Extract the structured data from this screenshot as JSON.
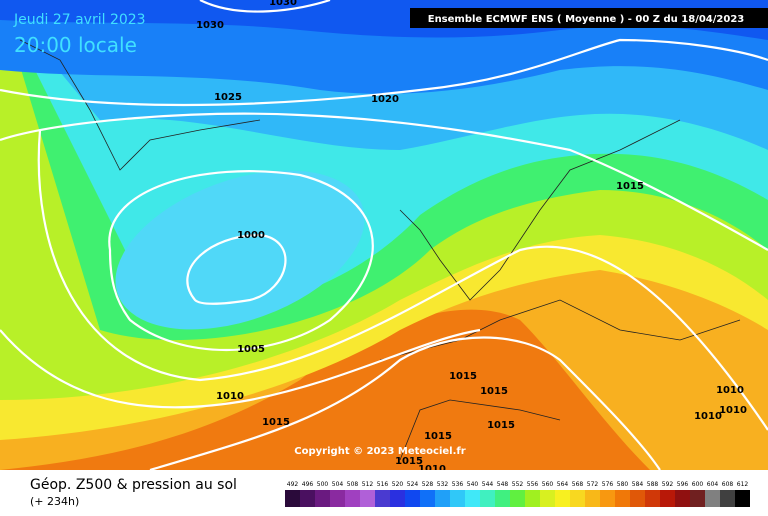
{
  "header": {
    "date": "Jeudi 27 avril 2023",
    "time": "20:00 locale",
    "model": "Ensemble ECMWF ENS  ( Moyenne )  -  00 Z du 18/04/2023"
  },
  "copyright": "Copyright © 2023 Meteociel.fr",
  "isobar_labels": [
    "1030",
    "1030",
    "1025",
    "1020",
    "1015",
    "1000",
    "1005",
    "1010",
    "1015",
    "1015",
    "1015",
    "1015",
    "1015",
    "1015",
    "1010",
    "1010",
    "1010",
    "1010"
  ],
  "footer": {
    "title": "Géop. Z500 & pression au sol",
    "lead": "(+ 234h)"
  },
  "legend": [
    {
      "value": 492,
      "color": "#2a0a3a"
    },
    {
      "value": 496,
      "color": "#4a1060"
    },
    {
      "value": 500,
      "color": "#6a1a80"
    },
    {
      "value": 504,
      "color": "#8a2aa0"
    },
    {
      "value": 508,
      "color": "#a040c0"
    },
    {
      "value": 512,
      "color": "#b060d8"
    },
    {
      "value": 516,
      "color": "#4a3ad0"
    },
    {
      "value": 520,
      "color": "#2a30e0"
    },
    {
      "value": 524,
      "color": "#1048f0"
    },
    {
      "value": 528,
      "color": "#1070f8"
    },
    {
      "value": 532,
      "color": "#20a0f8"
    },
    {
      "value": 536,
      "color": "#30c8f8"
    },
    {
      "value": 540,
      "color": "#40e8f8"
    },
    {
      "value": 544,
      "color": "#40f0c0"
    },
    {
      "value": 548,
      "color": "#40f080"
    },
    {
      "value": 552,
      "color": "#60f040"
    },
    {
      "value": 556,
      "color": "#a0f020"
    },
    {
      "value": 560,
      "color": "#d8f020"
    },
    {
      "value": 564,
      "color": "#f8f020"
    },
    {
      "value": 568,
      "color": "#f8d820"
    },
    {
      "value": 572,
      "color": "#f8b818"
    },
    {
      "value": 576,
      "color": "#f89810"
    },
    {
      "value": 580,
      "color": "#f07808"
    },
    {
      "value": 584,
      "color": "#e05808"
    },
    {
      "value": 588,
      "color": "#d03808"
    },
    {
      "value": 592,
      "color": "#b81808"
    },
    {
      "value": 596,
      "color": "#901010"
    },
    {
      "value": 600,
      "color": "#702020"
    },
    {
      "value": 604,
      "color": "#808080"
    },
    {
      "value": 608,
      "color": "#404040"
    },
    {
      "value": 612,
      "color": "#000000"
    }
  ]
}
